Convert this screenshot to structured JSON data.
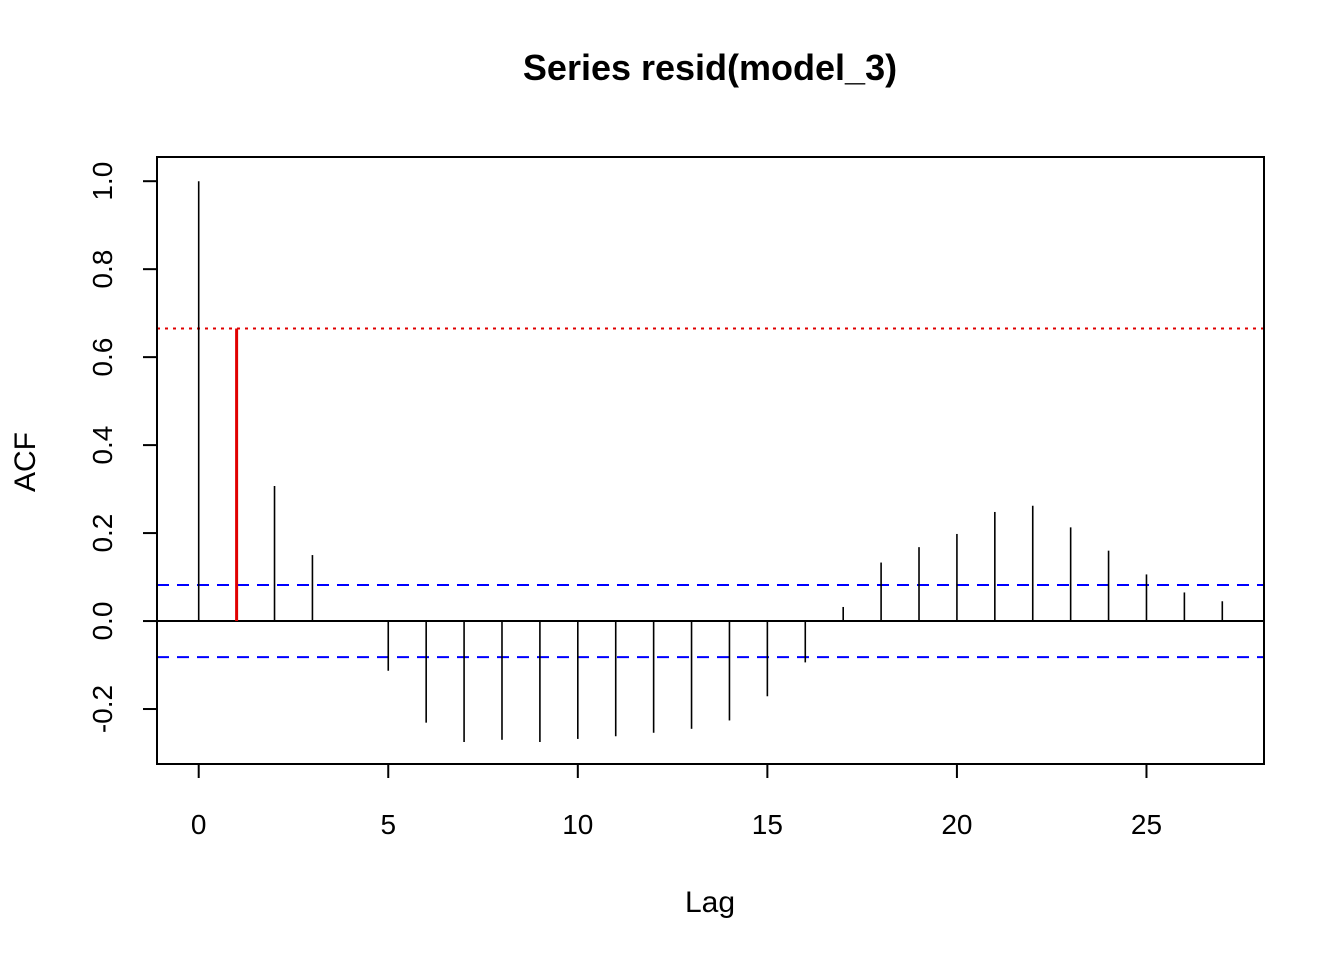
{
  "chart_data": {
    "type": "bar",
    "title": "Series resid(model_3)",
    "xlabel": "Lag",
    "ylabel": "ACF",
    "xlim": [
      -1.1,
      28.1
    ],
    "ylim": [
      -0.325,
      1.055
    ],
    "x_ticks": [
      0,
      5,
      10,
      15,
      20,
      25
    ],
    "x_tick_labels": [
      "0",
      "5",
      "10",
      "15",
      "20",
      "25"
    ],
    "y_ticks": [
      -0.2,
      0.0,
      0.2,
      0.4,
      0.6,
      0.8,
      1.0
    ],
    "y_tick_labels": [
      "-0.2",
      "0.0",
      "0.2",
      "0.4",
      "0.6",
      "0.8",
      "1.0"
    ],
    "series": [
      {
        "x": [
          0,
          1,
          2,
          3,
          4,
          5,
          6,
          7,
          8,
          9,
          10,
          11,
          12,
          13,
          14,
          15,
          16,
          17,
          18,
          19,
          20,
          21,
          22,
          23,
          24,
          25,
          26,
          27
        ],
        "values": [
          1.0,
          0.665,
          0.307,
          0.15,
          0.0,
          -0.113,
          -0.231,
          -0.275,
          -0.27,
          -0.275,
          -0.268,
          -0.262,
          -0.254,
          -0.245,
          -0.226,
          -0.171,
          -0.094,
          0.032,
          0.133,
          0.168,
          0.198,
          0.248,
          0.262,
          0.213,
          0.16,
          0.106,
          0.065,
          0.045
        ],
        "color": "#000000",
        "highlight_index": 1,
        "highlight_color": "#e00000"
      }
    ],
    "confidence_bounds": {
      "upper": 0.082,
      "lower": -0.082,
      "color": "#0000ff",
      "style": "dashed"
    },
    "reference_line": {
      "value": 0.665,
      "color": "#e00000",
      "style": "dotted"
    },
    "zero_line": true,
    "grid": false,
    "legend": "none"
  }
}
